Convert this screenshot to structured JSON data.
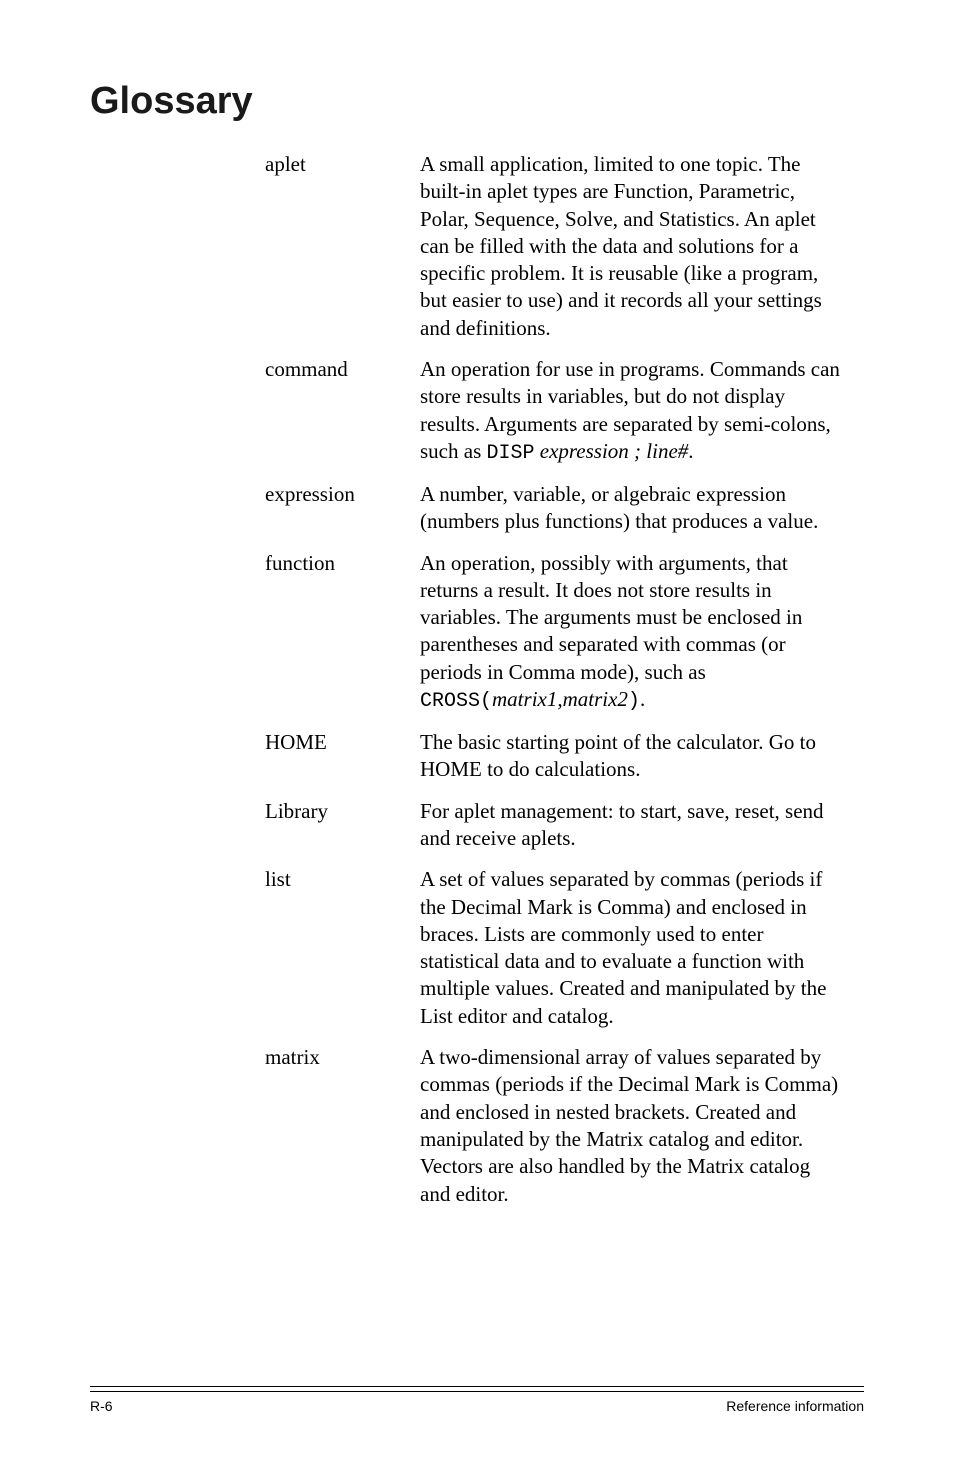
{
  "title": "Glossary",
  "entries": [
    {
      "term": "aplet",
      "def_parts": [
        {
          "t": "text",
          "v": "A small application, limited to one topic. The built-in aplet types are Function, Parametric, Polar, Sequence, Solve, and Statistics. An aplet can be filled with the data and solutions for a specific problem. It is reusable (like a program, but easier to use) and it records all your settings and definitions."
        }
      ]
    },
    {
      "term": "command",
      "def_parts": [
        {
          "t": "text",
          "v": "An operation for use in programs. Commands can store results in variables, but do not display results. Arguments are separated by semi-colons, such as "
        },
        {
          "t": "mono",
          "v": "DISP"
        },
        {
          "t": "text",
          "v": " "
        },
        {
          "t": "italic",
          "v": "expression ; line#"
        },
        {
          "t": "text",
          "v": "."
        }
      ]
    },
    {
      "term": "expression",
      "def_parts": [
        {
          "t": "text",
          "v": "A number, variable, or algebraic expression (numbers plus functions) that produces a value."
        }
      ]
    },
    {
      "term": "function",
      "def_parts": [
        {
          "t": "text",
          "v": "An operation, possibly with arguments, that returns a result. It does not store results in variables. The arguments must be enclosed in parentheses and separated with commas (or periods in Comma mode), such as "
        },
        {
          "t": "mono",
          "v": "CROSS("
        },
        {
          "t": "italic",
          "v": "matrix1,matrix2"
        },
        {
          "t": "mono",
          "v": ")"
        },
        {
          "t": "text",
          "v": "."
        }
      ]
    },
    {
      "term": "HOME",
      "def_parts": [
        {
          "t": "text",
          "v": "The basic starting point of the calculator. Go to HOME to do calculations."
        }
      ]
    },
    {
      "term": "Library",
      "def_parts": [
        {
          "t": "text",
          "v": "For aplet management: to start, save, reset, send and receive aplets."
        }
      ]
    },
    {
      "term": "list",
      "def_parts": [
        {
          "t": "text",
          "v": "A set of values separated by commas (periods if the Decimal Mark is Comma) and enclosed in braces. Lists are commonly used to enter statistical data and to evaluate a function with multiple values. Created and manipulated by the List editor and catalog."
        }
      ]
    },
    {
      "term": "matrix",
      "def_parts": [
        {
          "t": "text",
          "v": "A two-dimensional array of values separated by commas (periods if the Decimal Mark is Comma) and enclosed in nested brackets. Created and manipulated by the Matrix catalog and editor. Vectors are also handled by the Matrix catalog and editor."
        }
      ]
    }
  ],
  "footer_left": "R-6",
  "footer_right": "Reference information"
}
